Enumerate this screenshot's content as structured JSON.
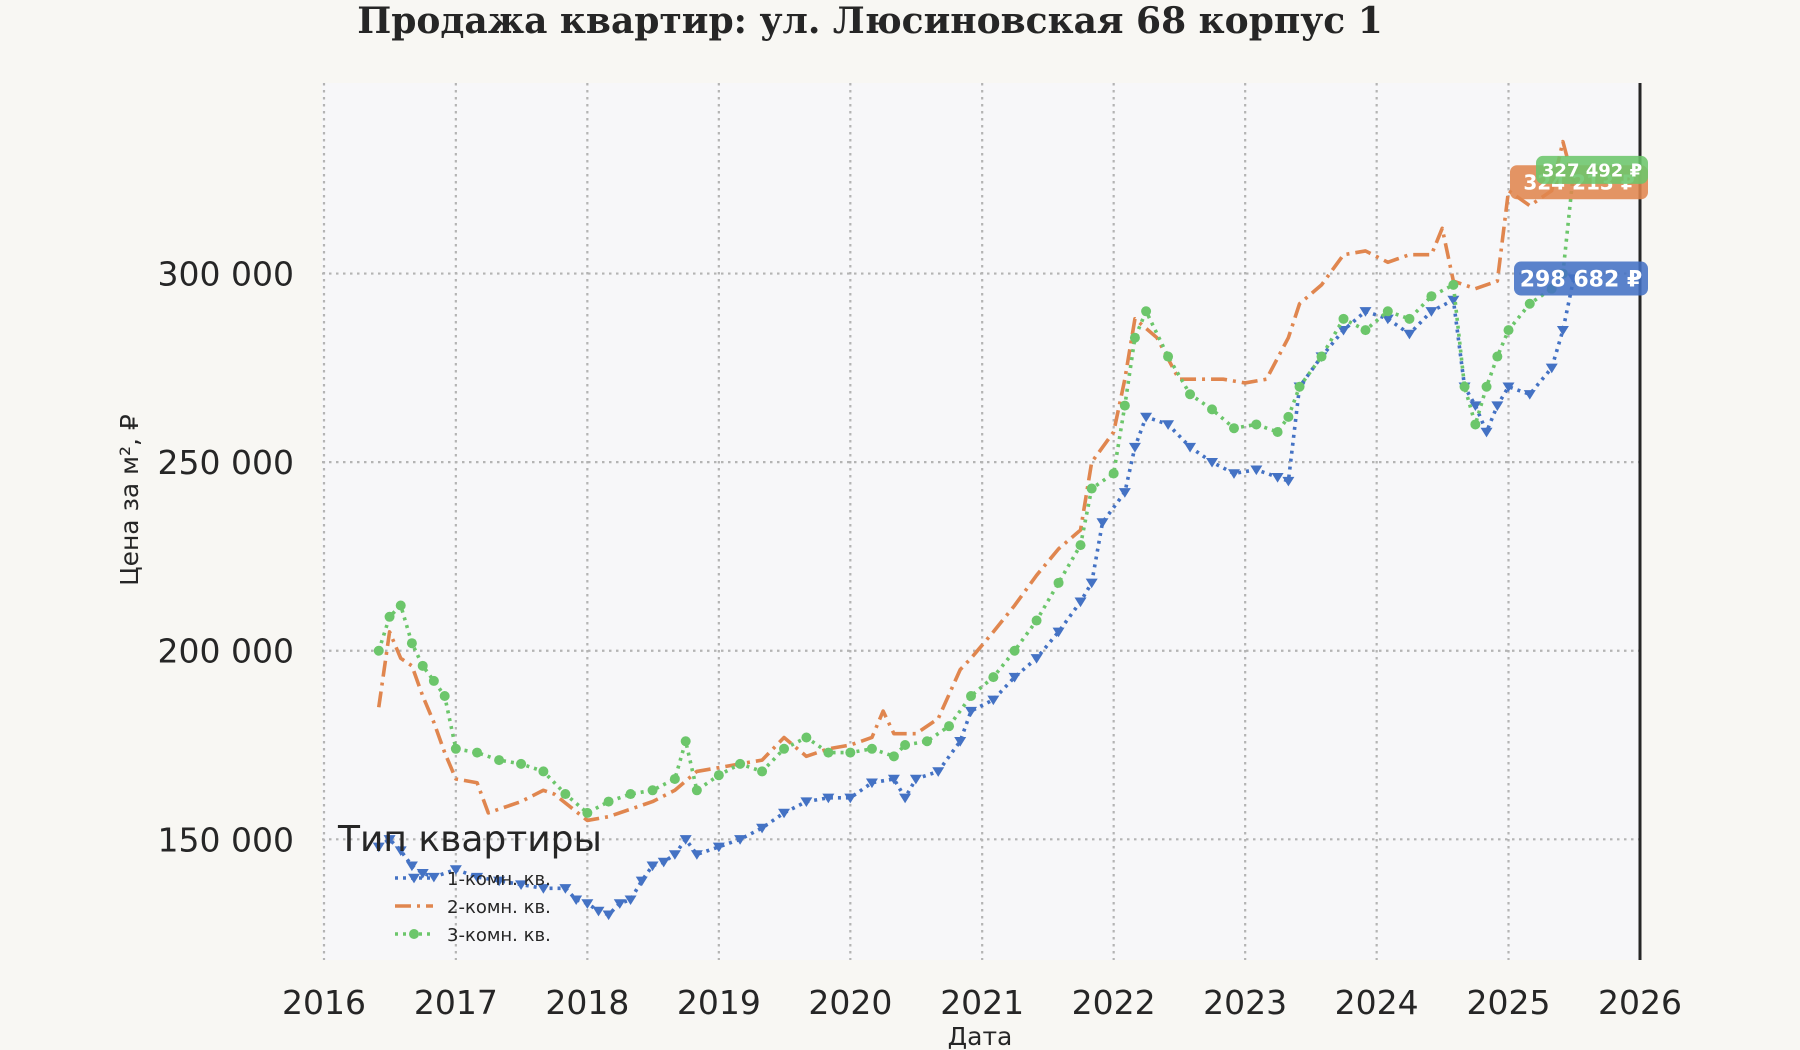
{
  "chart_data": {
    "type": "line",
    "title": "Продажа квартир: ул. Люсиновская 68 корпус 1",
    "xlabel": "Дата",
    "ylabel": "Цена за м², ₽",
    "xlim": [
      "2016-01-01",
      "2026-01-01"
    ],
    "ylim": [
      118000,
      350000
    ],
    "x_ticks": [
      {
        "date": "2016-01-01",
        "label": "2016"
      },
      {
        "date": "2017-01-01",
        "label": "2017"
      },
      {
        "date": "2018-01-01",
        "label": "2018"
      },
      {
        "date": "2019-01-01",
        "label": "2019"
      },
      {
        "date": "2020-01-01",
        "label": "2020"
      },
      {
        "date": "2021-01-01",
        "label": "2021"
      },
      {
        "date": "2022-01-01",
        "label": "2022"
      },
      {
        "date": "2023-01-01",
        "label": "2023"
      },
      {
        "date": "2024-01-01",
        "label": "2024"
      },
      {
        "date": "2025-01-01",
        "label": "2025"
      },
      {
        "date": "2026-01-01",
        "label": "2026"
      }
    ],
    "y_ticks": [
      {
        "value": 150000,
        "label": "150 000"
      },
      {
        "value": 200000,
        "label": "200 000"
      },
      {
        "value": 250000,
        "label": "250 000"
      },
      {
        "value": 300000,
        "label": "300 000"
      }
    ],
    "grid": true,
    "vline": {
      "date": "2026-01-01",
      "color": "#262626"
    },
    "legend": {
      "title": "Тип квартиры",
      "position": "lower-left",
      "entries": [
        "1-комн. кв.",
        "2-комн. кв.",
        "3-комн. кв."
      ]
    },
    "series": [
      {
        "name": "1-комн. кв.",
        "color": "#4472c4",
        "line": "dotted",
        "marker": "triangle-down",
        "last_label": "298 682 ₽",
        "points": [
          [
            "2016-06-01",
            148000
          ],
          [
            "2016-07-01",
            150000
          ],
          [
            "2016-08-01",
            147000
          ],
          [
            "2016-09-01",
            143000
          ],
          [
            "2016-10-01",
            141000
          ],
          [
            "2016-11-01",
            140000
          ],
          [
            "2017-01-01",
            142000
          ],
          [
            "2017-03-01",
            140000
          ],
          [
            "2017-05-01",
            139000
          ],
          [
            "2017-07-01",
            138000
          ],
          [
            "2017-09-01",
            137000
          ],
          [
            "2017-11-01",
            137000
          ],
          [
            "2017-12-01",
            134000
          ],
          [
            "2018-01-01",
            133000
          ],
          [
            "2018-02-01",
            131000
          ],
          [
            "2018-03-01",
            130000
          ],
          [
            "2018-04-01",
            133000
          ],
          [
            "2018-05-01",
            134000
          ],
          [
            "2018-06-01",
            139000
          ],
          [
            "2018-07-01",
            143000
          ],
          [
            "2018-08-01",
            144000
          ],
          [
            "2018-09-01",
            146000
          ],
          [
            "2018-10-01",
            150000
          ],
          [
            "2018-11-01",
            146000
          ],
          [
            "2019-01-01",
            148000
          ],
          [
            "2019-03-01",
            150000
          ],
          [
            "2019-05-01",
            153000
          ],
          [
            "2019-07-01",
            157000
          ],
          [
            "2019-09-01",
            160000
          ],
          [
            "2019-11-01",
            161000
          ],
          [
            "2020-01-01",
            161000
          ],
          [
            "2020-03-01",
            165000
          ],
          [
            "2020-05-01",
            166000
          ],
          [
            "2020-06-01",
            161000
          ],
          [
            "2020-07-01",
            166000
          ],
          [
            "2020-09-01",
            168000
          ],
          [
            "2020-11-01",
            176000
          ],
          [
            "2020-12-01",
            184000
          ],
          [
            "2021-02-01",
            187000
          ],
          [
            "2021-04-01",
            193000
          ],
          [
            "2021-06-01",
            198000
          ],
          [
            "2021-08-01",
            205000
          ],
          [
            "2021-10-01",
            213000
          ],
          [
            "2021-11-01",
            218000
          ],
          [
            "2021-12-01",
            234000
          ],
          [
            "2022-02-01",
            242000
          ],
          [
            "2022-03-01",
            254000
          ],
          [
            "2022-04-01",
            262000
          ],
          [
            "2022-06-01",
            260000
          ],
          [
            "2022-08-01",
            254000
          ],
          [
            "2022-10-01",
            250000
          ],
          [
            "2022-12-01",
            247000
          ],
          [
            "2023-02-01",
            248000
          ],
          [
            "2023-04-01",
            246000
          ],
          [
            "2023-05-01",
            245000
          ],
          [
            "2023-06-01",
            270000
          ],
          [
            "2023-08-01",
            278000
          ],
          [
            "2023-10-01",
            285000
          ],
          [
            "2023-12-01",
            290000
          ],
          [
            "2024-02-01",
            288000
          ],
          [
            "2024-04-01",
            284000
          ],
          [
            "2024-06-01",
            290000
          ],
          [
            "2024-08-01",
            293000
          ],
          [
            "2024-09-01",
            270000
          ],
          [
            "2024-10-01",
            265000
          ],
          [
            "2024-11-01",
            258000
          ],
          [
            "2024-12-01",
            265000
          ],
          [
            "2025-01-01",
            270000
          ],
          [
            "2025-03-01",
            268000
          ],
          [
            "2025-05-01",
            275000
          ],
          [
            "2025-06-01",
            285000
          ],
          [
            "2025-07-01",
            298682
          ]
        ]
      },
      {
        "name": "2-комн. кв.",
        "color": "#e0864f",
        "line": "dashdot",
        "marker": "none",
        "last_label": "324 213 ₽",
        "points": [
          [
            "2016-06-01",
            185000
          ],
          [
            "2016-07-01",
            205000
          ],
          [
            "2016-08-01",
            198000
          ],
          [
            "2016-09-01",
            196000
          ],
          [
            "2016-10-01",
            188000
          ],
          [
            "2016-11-01",
            181000
          ],
          [
            "2016-12-01",
            173000
          ],
          [
            "2017-01-01",
            166000
          ],
          [
            "2017-03-01",
            165000
          ],
          [
            "2017-04-01",
            157000
          ],
          [
            "2017-05-01",
            158000
          ],
          [
            "2017-07-01",
            160000
          ],
          [
            "2017-09-01",
            163000
          ],
          [
            "2017-10-01",
            162000
          ],
          [
            "2018-01-01",
            155000
          ],
          [
            "2018-03-01",
            156000
          ],
          [
            "2018-05-01",
            158000
          ],
          [
            "2018-07-01",
            160000
          ],
          [
            "2018-09-01",
            163000
          ],
          [
            "2018-11-01",
            168000
          ],
          [
            "2019-01-01",
            169000
          ],
          [
            "2019-03-01",
            170000
          ],
          [
            "2019-05-01",
            171000
          ],
          [
            "2019-07-01",
            177000
          ],
          [
            "2019-09-01",
            172000
          ],
          [
            "2019-11-01",
            174000
          ],
          [
            "2020-01-01",
            175000
          ],
          [
            "2020-03-01",
            177000
          ],
          [
            "2020-04-01",
            184000
          ],
          [
            "2020-05-01",
            178000
          ],
          [
            "2020-07-01",
            178000
          ],
          [
            "2020-09-01",
            182000
          ],
          [
            "2020-11-01",
            195000
          ],
          [
            "2020-12-01",
            198000
          ],
          [
            "2021-02-01",
            205000
          ],
          [
            "2021-04-01",
            212000
          ],
          [
            "2021-06-01",
            220000
          ],
          [
            "2021-08-01",
            227000
          ],
          [
            "2021-10-01",
            232000
          ],
          [
            "2021-11-01",
            250000
          ],
          [
            "2022-01-01",
            258000
          ],
          [
            "2022-02-01",
            272000
          ],
          [
            "2022-03-01",
            288000
          ],
          [
            "2022-05-01",
            283000
          ],
          [
            "2022-07-01",
            272000
          ],
          [
            "2022-09-01",
            272000
          ],
          [
            "2022-11-01",
            272000
          ],
          [
            "2023-01-01",
            271000
          ],
          [
            "2023-03-01",
            272000
          ],
          [
            "2023-05-01",
            283000
          ],
          [
            "2023-06-01",
            292000
          ],
          [
            "2023-08-01",
            297000
          ],
          [
            "2023-10-01",
            305000
          ],
          [
            "2023-12-01",
            306000
          ],
          [
            "2024-02-01",
            303000
          ],
          [
            "2024-04-01",
            305000
          ],
          [
            "2024-06-01",
            305000
          ],
          [
            "2024-07-01",
            312000
          ],
          [
            "2024-08-01",
            298000
          ],
          [
            "2024-10-01",
            296000
          ],
          [
            "2024-12-01",
            298000
          ],
          [
            "2025-01-01",
            322000
          ],
          [
            "2025-03-01",
            318000
          ],
          [
            "2025-05-01",
            322000
          ],
          [
            "2025-06-01",
            335000
          ],
          [
            "2025-07-01",
            324213
          ]
        ]
      },
      {
        "name": "3-комн. кв.",
        "color": "#6cc66b",
        "line": "dotted",
        "marker": "circle",
        "last_label": "327 492 ₽",
        "points": [
          [
            "2016-06-01",
            200000
          ],
          [
            "2016-07-01",
            209000
          ],
          [
            "2016-08-01",
            212000
          ],
          [
            "2016-09-01",
            202000
          ],
          [
            "2016-10-01",
            196000
          ],
          [
            "2016-11-01",
            192000
          ],
          [
            "2016-12-01",
            188000
          ],
          [
            "2017-01-01",
            174000
          ],
          [
            "2017-03-01",
            173000
          ],
          [
            "2017-05-01",
            171000
          ],
          [
            "2017-07-01",
            170000
          ],
          [
            "2017-09-01",
            168000
          ],
          [
            "2017-11-01",
            162000
          ],
          [
            "2018-01-01",
            157000
          ],
          [
            "2018-03-01",
            160000
          ],
          [
            "2018-05-01",
            162000
          ],
          [
            "2018-07-01",
            163000
          ],
          [
            "2018-09-01",
            166000
          ],
          [
            "2018-10-01",
            176000
          ],
          [
            "2018-11-01",
            163000
          ],
          [
            "2019-01-01",
            167000
          ],
          [
            "2019-03-01",
            170000
          ],
          [
            "2019-05-01",
            168000
          ],
          [
            "2019-07-01",
            174000
          ],
          [
            "2019-09-01",
            177000
          ],
          [
            "2019-11-01",
            173000
          ],
          [
            "2020-01-01",
            173000
          ],
          [
            "2020-03-01",
            174000
          ],
          [
            "2020-05-01",
            172000
          ],
          [
            "2020-06-01",
            175000
          ],
          [
            "2020-08-01",
            176000
          ],
          [
            "2020-10-01",
            180000
          ],
          [
            "2020-12-01",
            188000
          ],
          [
            "2021-02-01",
            193000
          ],
          [
            "2021-04-01",
            200000
          ],
          [
            "2021-06-01",
            208000
          ],
          [
            "2021-08-01",
            218000
          ],
          [
            "2021-10-01",
            228000
          ],
          [
            "2021-11-01",
            243000
          ],
          [
            "2022-01-01",
            247000
          ],
          [
            "2022-02-01",
            265000
          ],
          [
            "2022-03-01",
            283000
          ],
          [
            "2022-04-01",
            290000
          ],
          [
            "2022-06-01",
            278000
          ],
          [
            "2022-08-01",
            268000
          ],
          [
            "2022-10-01",
            264000
          ],
          [
            "2022-12-01",
            259000
          ],
          [
            "2023-02-01",
            260000
          ],
          [
            "2023-04-01",
            258000
          ],
          [
            "2023-05-01",
            262000
          ],
          [
            "2023-06-01",
            270000
          ],
          [
            "2023-08-01",
            278000
          ],
          [
            "2023-10-01",
            288000
          ],
          [
            "2023-12-01",
            285000
          ],
          [
            "2024-02-01",
            290000
          ],
          [
            "2024-04-01",
            288000
          ],
          [
            "2024-06-01",
            294000
          ],
          [
            "2024-08-01",
            297000
          ],
          [
            "2024-09-01",
            270000
          ],
          [
            "2024-10-01",
            260000
          ],
          [
            "2024-11-01",
            270000
          ],
          [
            "2024-12-01",
            278000
          ],
          [
            "2025-01-01",
            285000
          ],
          [
            "2025-03-01",
            292000
          ],
          [
            "2025-05-01",
            296000
          ],
          [
            "2025-06-01",
            300000
          ],
          [
            "2025-07-01",
            327492
          ]
        ]
      }
    ]
  }
}
